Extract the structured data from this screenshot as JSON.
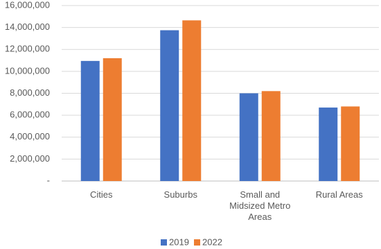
{
  "chart_data": {
    "type": "bar",
    "categories": [
      "Cities",
      "Suburbs",
      "Small and Midsized Metro Areas",
      "Rural Areas"
    ],
    "series": [
      {
        "name": "2019",
        "color": "#4472c4",
        "values": [
          10950000,
          13750000,
          8000000,
          6700000
        ]
      },
      {
        "name": "2022",
        "color": "#ed7d31",
        "values": [
          11200000,
          14650000,
          8200000,
          6800000
        ]
      }
    ],
    "ylim": [
      0,
      16000000
    ],
    "yticks": [
      {
        "value": 0,
        "label": "-"
      },
      {
        "value": 2000000,
        "label": "2,000,000"
      },
      {
        "value": 4000000,
        "label": "4,000,000"
      },
      {
        "value": 6000000,
        "label": "6,000,000"
      },
      {
        "value": 8000000,
        "label": "8,000,000"
      },
      {
        "value": 10000000,
        "label": "10,000,000"
      },
      {
        "value": 12000000,
        "label": "12,000,000"
      },
      {
        "value": 14000000,
        "label": "14,000,000"
      },
      {
        "value": 16000000,
        "label": "16,000,000"
      }
    ],
    "grid": true,
    "legend": "bottom"
  }
}
